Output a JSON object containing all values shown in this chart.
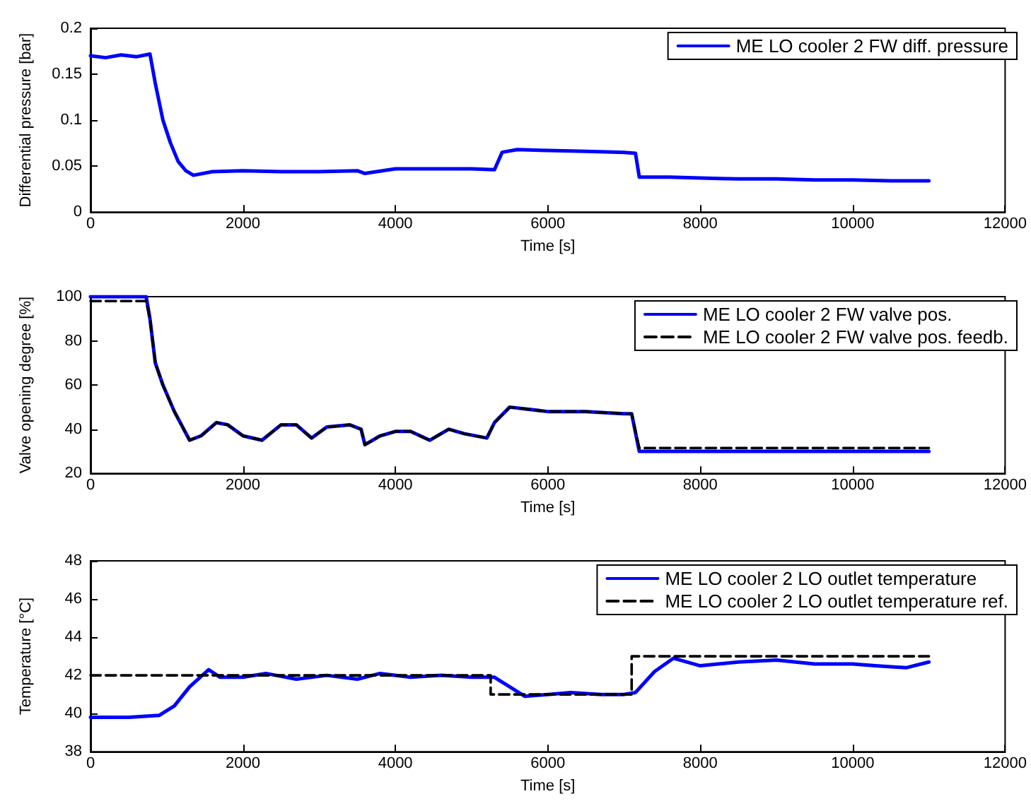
{
  "chart_data": [
    {
      "type": "line",
      "xlabel": "Time [s]",
      "ylabel": "Differential pressure [bar]",
      "legend": "top right",
      "xlim": [
        0,
        12000
      ],
      "xticks": [
        0,
        2000,
        4000,
        6000,
        8000,
        10000,
        12000
      ],
      "ylim": [
        0,
        0.2
      ],
      "yticks": [
        0,
        0.05,
        0.1,
        0.15,
        0.2
      ],
      "series": [
        {
          "name": "ME LO cooler 2 FW diff. pressure",
          "color": "#0000ff",
          "line_style": "solid",
          "x": [
            0,
            200,
            400,
            600,
            780,
            850,
            950,
            1050,
            1150,
            1250,
            1350,
            1600,
            2000,
            2500,
            3000,
            3500,
            3600,
            4000,
            4500,
            5000,
            5300,
            5400,
            5600,
            6000,
            6500,
            7000,
            7150,
            7200,
            7600,
            8000,
            8500,
            9000,
            9500,
            10000,
            10500,
            11000
          ],
          "values": [
            0.17,
            0.168,
            0.171,
            0.169,
            0.172,
            0.14,
            0.1,
            0.075,
            0.055,
            0.045,
            0.04,
            0.044,
            0.045,
            0.044,
            0.044,
            0.045,
            0.042,
            0.047,
            0.047,
            0.047,
            0.046,
            0.065,
            0.068,
            0.067,
            0.066,
            0.065,
            0.064,
            0.038,
            0.038,
            0.037,
            0.036,
            0.036,
            0.035,
            0.035,
            0.034,
            0.034
          ]
        }
      ]
    },
    {
      "type": "line",
      "xlabel": "Time [s]",
      "ylabel": "Valve opening degree [%]",
      "legend": "top right",
      "xlim": [
        0,
        12000
      ],
      "xticks": [
        0,
        2000,
        4000,
        6000,
        8000,
        10000,
        12000
      ],
      "ylim": [
        20,
        100
      ],
      "yticks": [
        20,
        40,
        60,
        80,
        100
      ],
      "series": [
        {
          "name": "ME LO cooler 2 FW valve pos.",
          "color": "#0000ff",
          "line_style": "solid",
          "x": [
            0,
            730,
            780,
            850,
            950,
            1100,
            1300,
            1450,
            1650,
            1800,
            2000,
            2250,
            2500,
            2700,
            2900,
            3100,
            3400,
            3550,
            3600,
            3800,
            4000,
            4200,
            4450,
            4700,
            4900,
            5200,
            5300,
            5500,
            6000,
            6500,
            7000,
            7100,
            7200,
            7400,
            8000,
            9000,
            10000,
            11000
          ],
          "values": [
            100,
            100,
            90,
            70,
            60,
            48,
            35,
            37,
            43,
            42,
            37,
            35,
            42,
            42,
            36,
            41,
            42,
            40,
            33,
            37,
            39,
            39,
            35,
            40,
            38,
            36,
            43,
            50,
            48,
            48,
            47,
            47,
            30,
            30,
            30,
            30,
            30,
            30
          ]
        },
        {
          "name": "ME LO cooler 2 FW valve pos. feedb.",
          "color": "#000000",
          "line_style": "dashed",
          "x": [
            0,
            730,
            780,
            850,
            950,
            1100,
            1300,
            1450,
            1650,
            1800,
            2000,
            2250,
            2500,
            2700,
            2900,
            3100,
            3400,
            3550,
            3600,
            3800,
            4000,
            4200,
            4450,
            4700,
            4900,
            5200,
            5300,
            5500,
            6000,
            6500,
            7000,
            7100,
            7200,
            7400,
            8000,
            9000,
            10000,
            11000
          ],
          "values": [
            98,
            98,
            90,
            70,
            60,
            48,
            35,
            37,
            43,
            42,
            37,
            35,
            42,
            42,
            36,
            41,
            42,
            40,
            33,
            37,
            39,
            39,
            35,
            40,
            38,
            36,
            43,
            50,
            48,
            48,
            47,
            47,
            31.5,
            31.5,
            31.5,
            31.5,
            31.5,
            31.5
          ]
        }
      ]
    },
    {
      "type": "line",
      "xlabel": "Time [s]",
      "ylabel": "Temperature [°C]",
      "legend": "top right",
      "xlim": [
        0,
        12000
      ],
      "xticks": [
        0,
        2000,
        4000,
        6000,
        8000,
        10000,
        12000
      ],
      "ylim": [
        38,
        48
      ],
      "yticks": [
        38,
        40,
        42,
        44,
        46,
        48
      ],
      "series": [
        {
          "name": "ME LO cooler 2 LO outlet temperature",
          "color": "#0000ff",
          "line_style": "solid",
          "x": [
            0,
            500,
            900,
            1100,
            1300,
            1550,
            1700,
            2000,
            2300,
            2700,
            3100,
            3500,
            3800,
            4200,
            4600,
            5000,
            5300,
            5500,
            5700,
            6000,
            6300,
            6700,
            7000,
            7150,
            7400,
            7650,
            8000,
            8500,
            9000,
            9500,
            10000,
            10300,
            10700,
            11000
          ],
          "values": [
            39.8,
            39.8,
            39.9,
            40.4,
            41.4,
            42.3,
            41.9,
            41.9,
            42.1,
            41.8,
            42.0,
            41.8,
            42.1,
            41.9,
            42.0,
            41.9,
            41.9,
            41.4,
            40.9,
            41.0,
            41.1,
            41.0,
            41.0,
            41.1,
            42.2,
            42.9,
            42.5,
            42.7,
            42.8,
            42.6,
            42.6,
            42.5,
            42.4,
            42.7
          ]
        },
        {
          "name": "ME LO cooler 2 LO outlet temperature ref.",
          "color": "#000000",
          "line_style": "dashed",
          "x": [
            0,
            5250,
            5250,
            7100,
            7100,
            11000
          ],
          "values": [
            42,
            42,
            41,
            41,
            43,
            43
          ]
        }
      ]
    }
  ]
}
